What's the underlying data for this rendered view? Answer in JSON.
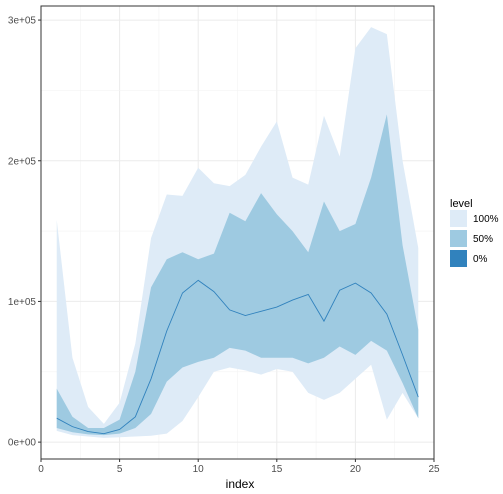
{
  "chart_data": {
    "type": "area",
    "xlabel": "index",
    "ylabel": "",
    "xlim": [
      0,
      25
    ],
    "ylim": [
      -12000,
      310000
    ],
    "x_ticks": [
      0,
      5,
      10,
      15,
      20,
      25
    ],
    "y_ticks": [
      0,
      100000,
      200000,
      300000
    ],
    "x_tick_labels": [
      "0",
      "5",
      "10",
      "15",
      "20",
      "25"
    ],
    "y_tick_labels": [
      "0e+00",
      "1e+05",
      "2e+05",
      "3e+05"
    ],
    "grid": true,
    "legend": {
      "title": "level",
      "placement": "right",
      "entries": [
        {
          "label": "100%",
          "color": "#deebf7"
        },
        {
          "label": "50%",
          "color": "#9ecae1"
        },
        {
          "label": "0%",
          "color": "#3182bd"
        }
      ]
    },
    "x": [
      1,
      2,
      3,
      4,
      5,
      6,
      7,
      8,
      9,
      10,
      11,
      12,
      13,
      14,
      15,
      16,
      17,
      18,
      19,
      20,
      21,
      22,
      23,
      24
    ],
    "series": [
      {
        "name": "100%",
        "color": "#deebf7",
        "upper": [
          158000,
          60000,
          25000,
          13000,
          28000,
          70000,
          145000,
          176000,
          175000,
          195000,
          184000,
          182000,
          190000,
          210000,
          228000,
          188000,
          183000,
          232000,
          203000,
          280000,
          295000,
          290000,
          200000,
          138000
        ],
        "lower": [
          8000,
          5000,
          4000,
          3000,
          3500,
          4000,
          4500,
          6000,
          15000,
          32000,
          50000,
          53000,
          51000,
          48000,
          52000,
          50000,
          35000,
          30000,
          35000,
          45000,
          55000,
          16000,
          35000,
          17000
        ]
      },
      {
        "name": "50%",
        "color": "#9ecae1",
        "upper": [
          38000,
          18000,
          10000,
          10000,
          16000,
          50000,
          110000,
          130000,
          135000,
          130000,
          134000,
          163000,
          157000,
          177000,
          162000,
          150000,
          135000,
          171000,
          150000,
          155000,
          188000,
          233000,
          140000,
          80000
        ],
        "lower": [
          10000,
          7000,
          5500,
          5000,
          6000,
          10000,
          20000,
          43000,
          53000,
          57000,
          60000,
          67000,
          65000,
          60000,
          60000,
          60000,
          56000,
          60000,
          68000,
          62000,
          72000,
          65000,
          42000,
          17000
        ]
      }
    ],
    "line": {
      "name": "0%",
      "color": "#3182bd",
      "values": [
        17000,
        11000,
        7500,
        6000,
        9000,
        18000,
        45000,
        79000,
        106000,
        115000,
        107000,
        94000,
        90000,
        93000,
        96000,
        101000,
        105000,
        86000,
        108000,
        113000,
        106000,
        91000,
        62000,
        32000
      ]
    }
  }
}
